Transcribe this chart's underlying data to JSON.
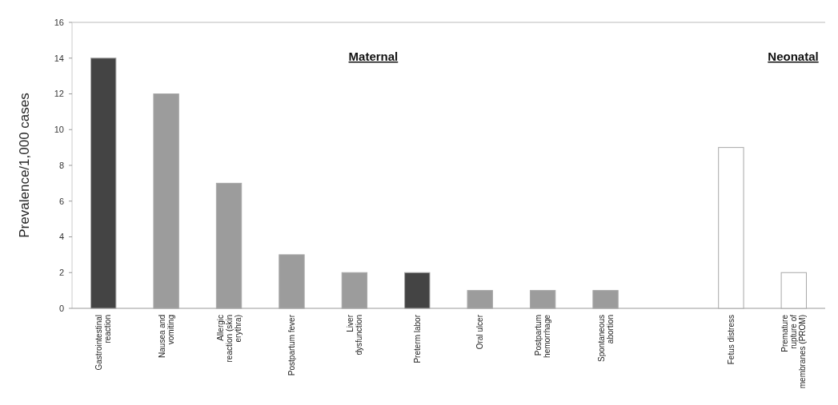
{
  "chart_data": {
    "type": "bar",
    "ylabel": "Prevalence/1,000 cases",
    "categories": [
      "Gastrointestinal reaction",
      "Nausea and vomiting",
      "Allergic reaction (skin erythra)",
      "Postpartum fever",
      "Liver dysfunction",
      "Preterm labor",
      "Oral ulcer",
      "Postpartum hemorrhage",
      "Spontaneous abortion",
      null,
      "Fetus distress",
      "Premature rupture of membranes (PROM)"
    ],
    "values": [
      14,
      12,
      7,
      3,
      2,
      2,
      1,
      1,
      1,
      null,
      9,
      2
    ],
    "colors": [
      "#444444",
      "#9c9c9c",
      "#9c9c9c",
      "#9c9c9c",
      "#9c9c9c",
      "#444444",
      "#9c9c9c",
      "#9c9c9c",
      "#9c9c9c",
      null,
      "#ffffff",
      "#ffffff"
    ],
    "ylim": [
      0,
      16
    ],
    "yticks": [
      0,
      2,
      4,
      6,
      8,
      10,
      12,
      14,
      16
    ],
    "annotations": [
      "Maternal",
      "Neonatal"
    ]
  }
}
